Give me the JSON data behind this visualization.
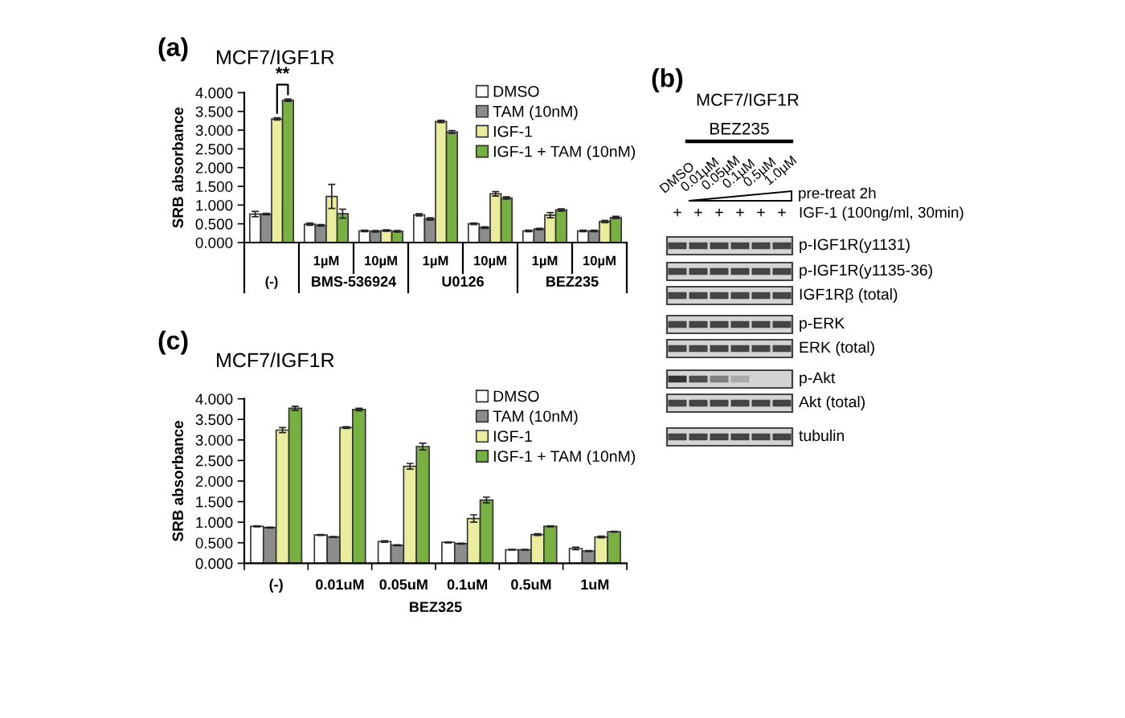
{
  "chart_data": [
    {
      "type": "bar",
      "title": "(a)",
      "subtitle": "MCF7/IGF1R",
      "ylabel": "SRB absorbance",
      "categories": [
        "(-)",
        "1µM",
        "10µM",
        "1µM",
        "10µM",
        "1µM",
        "10µM"
      ],
      "series": [
        {
          "name": "DMSO",
          "color": "#ffffff",
          "values": [
            0.76,
            0.49,
            0.31,
            0.74,
            0.5,
            0.31,
            0.31
          ],
          "errors": [
            0.07,
            0.03,
            0.02,
            0.03,
            0.02,
            0.02,
            0.02
          ]
        },
        {
          "name": "TAM (10nM)",
          "color": "#8c8c8c",
          "values": [
            0.76,
            0.46,
            0.3,
            0.63,
            0.4,
            0.36,
            0.31
          ],
          "errors": [
            0.02,
            0.02,
            0.02,
            0.03,
            0.02,
            0.02,
            0.02
          ]
        },
        {
          "name": "IGF-1",
          "color": "#eaed9e",
          "values": [
            3.3,
            1.23,
            0.32,
            3.23,
            1.3,
            0.73,
            0.56
          ],
          "errors": [
            0.03,
            0.32,
            0.02,
            0.03,
            0.06,
            0.07,
            0.03
          ]
        },
        {
          "name": "IGF-1 + TAM (10nM)",
          "color": "#78b043",
          "values": [
            3.8,
            0.77,
            0.3,
            2.95,
            1.19,
            0.87,
            0.67
          ],
          "errors": [
            0.03,
            0.12,
            0.02,
            0.04,
            0.03,
            0.03,
            0.03
          ]
        }
      ],
      "ylim": [
        0,
        4
      ],
      "yticks": [
        {
          "value": 0,
          "label": "0.000"
        },
        {
          "value": 0.5,
          "label": "0.500"
        },
        {
          "value": 1,
          "label": "1.000"
        },
        {
          "value": 1.5,
          "label": "1.500"
        },
        {
          "value": 2,
          "label": "2.000"
        },
        {
          "value": 2.5,
          "label": "2.500"
        },
        {
          "value": 3,
          "label": "3.000"
        },
        {
          "value": 3.5,
          "label": "3.500"
        },
        {
          "value": 4,
          "label": "4.000"
        }
      ],
      "legend": "top right",
      "annotations": [
        "**",
        "BMS-536924",
        "U0126",
        "BEZ235"
      ]
    },
    {
      "type": "other",
      "title": "(b)",
      "subtitle": "MCF7/IGF1R",
      "categories": [
        "DMSO",
        "0.01µM",
        "0.05µM",
        "0.1µM",
        "0.5µM",
        "1.0µM"
      ],
      "annotations": [
        "BEZ235",
        "pre-treat 2h",
        "+",
        "+",
        "+",
        "+",
        "+",
        "+",
        "IGF-1 (100ng/ml, 30min)",
        "p-IGF1R(y1131)",
        "p-IGF1R(y1135-36)",
        "IGF1Rβ (total)",
        "p-ERK",
        "ERK (total)",
        "p-Akt",
        "Akt (total)",
        "tubulin"
      ]
    },
    {
      "type": "bar",
      "title": "(c)",
      "subtitle": "MCF7/IGF1R",
      "ylabel": "SRB absorbance",
      "xlabel": "BEZ325",
      "categories": [
        "(-)",
        "0.01uM",
        "0.05uM",
        "0.1uM",
        "0.5uM",
        "1uM"
      ],
      "series": [
        {
          "name": "DMSO",
          "color": "#ffffff",
          "values": [
            0.9,
            0.69,
            0.53,
            0.51,
            0.33,
            0.36
          ],
          "errors": [
            0.01,
            0.01,
            0.02,
            0.01,
            0.01,
            0.03
          ]
        },
        {
          "name": "TAM (10nM)",
          "color": "#8c8c8c",
          "values": [
            0.87,
            0.64,
            0.44,
            0.48,
            0.33,
            0.3
          ],
          "errors": [
            0.01,
            0.01,
            0.01,
            0.01,
            0.01,
            0.01
          ]
        },
        {
          "name": "IGF-1",
          "color": "#eaed9e",
          "values": [
            3.24,
            3.3,
            2.36,
            1.09,
            0.7,
            0.64
          ],
          "errors": [
            0.06,
            0.02,
            0.07,
            0.09,
            0.02,
            0.02
          ]
        },
        {
          "name": "IGF-1 + TAM (10nM)",
          "color": "#78b043",
          "values": [
            3.77,
            3.74,
            2.84,
            1.54,
            0.9,
            0.77
          ],
          "errors": [
            0.05,
            0.03,
            0.08,
            0.07,
            0.01,
            0.01
          ]
        }
      ],
      "ylim": [
        0,
        4
      ],
      "yticks": [
        {
          "value": 0,
          "label": "0.000"
        },
        {
          "value": 0.5,
          "label": "0.500"
        },
        {
          "value": 1,
          "label": "1.000"
        },
        {
          "value": 1.5,
          "label": "1.500"
        },
        {
          "value": 2,
          "label": "2.000"
        },
        {
          "value": 2.5,
          "label": "2.500"
        },
        {
          "value": 3,
          "label": "3.000"
        },
        {
          "value": 3.5,
          "label": "3.500"
        },
        {
          "value": 4,
          "label": "4.000"
        }
      ],
      "legend": "top right"
    }
  ]
}
